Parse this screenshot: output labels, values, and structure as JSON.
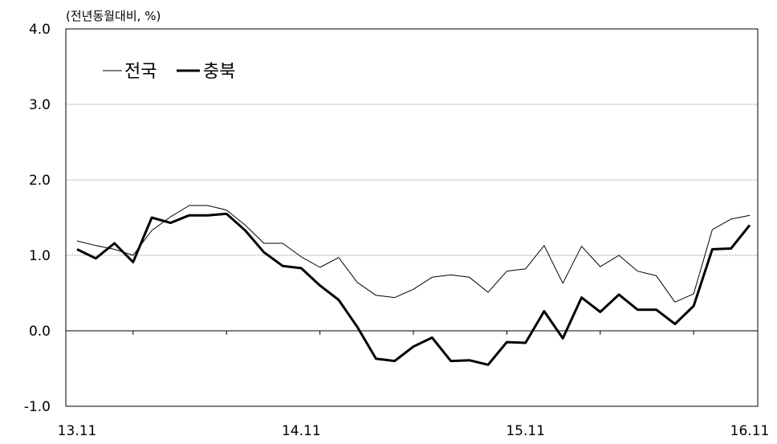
{
  "chart_data": {
    "type": "line",
    "unit_label": "(전년동월대비, %)",
    "x": [
      "13.11",
      "13.12",
      "14.01",
      "14.02",
      "14.03",
      "14.04",
      "14.05",
      "14.06",
      "14.07",
      "14.08",
      "14.09",
      "14.10",
      "14.11",
      "14.12",
      "15.01",
      "15.02",
      "15.03",
      "15.04",
      "15.05",
      "15.06",
      "15.07",
      "15.08",
      "15.09",
      "15.10",
      "15.11",
      "15.12",
      "16.01",
      "16.02",
      "16.03",
      "16.04",
      "16.05",
      "16.06",
      "16.07",
      "16.08",
      "16.09",
      "16.10",
      "16.11"
    ],
    "x_tick_labels": [
      "13.11",
      "14.11",
      "15.11",
      "16.11"
    ],
    "y_tick_labels": [
      "4.0",
      "3.0",
      "2.0",
      "1.0",
      "0.0",
      "-1.0"
    ],
    "ylim": [
      -1.0,
      4.0
    ],
    "y_ticks": [
      4.0,
      3.0,
      2.0,
      1.0,
      0.0,
      -1.0
    ],
    "grid": true,
    "legend_position": "top-left",
    "series": [
      {
        "name": "전국",
        "color": "#000000",
        "style": "thin",
        "values": [
          1.19,
          1.13,
          1.08,
          1.0,
          1.33,
          1.51,
          1.66,
          1.66,
          1.6,
          1.4,
          1.16,
          1.16,
          0.98,
          0.84,
          0.97,
          0.64,
          0.47,
          0.44,
          0.55,
          0.71,
          0.74,
          0.71,
          0.51,
          0.79,
          0.82,
          1.13,
          0.63,
          1.12,
          0.85,
          1.0,
          0.79,
          0.73,
          0.38,
          0.49,
          1.34,
          1.48,
          1.53
        ]
      },
      {
        "name": "충북",
        "color": "#000000",
        "style": "thick",
        "values": [
          1.08,
          0.96,
          1.16,
          0.91,
          1.5,
          1.43,
          1.53,
          1.53,
          1.55,
          1.33,
          1.04,
          0.86,
          0.83,
          0.6,
          0.41,
          0.05,
          -0.37,
          -0.4,
          -0.21,
          -0.09,
          -0.4,
          -0.39,
          -0.45,
          -0.15,
          -0.16,
          0.26,
          -0.1,
          0.44,
          0.25,
          0.48,
          0.28,
          0.28,
          0.09,
          0.33,
          1.08,
          1.09,
          1.4
        ]
      }
    ]
  }
}
